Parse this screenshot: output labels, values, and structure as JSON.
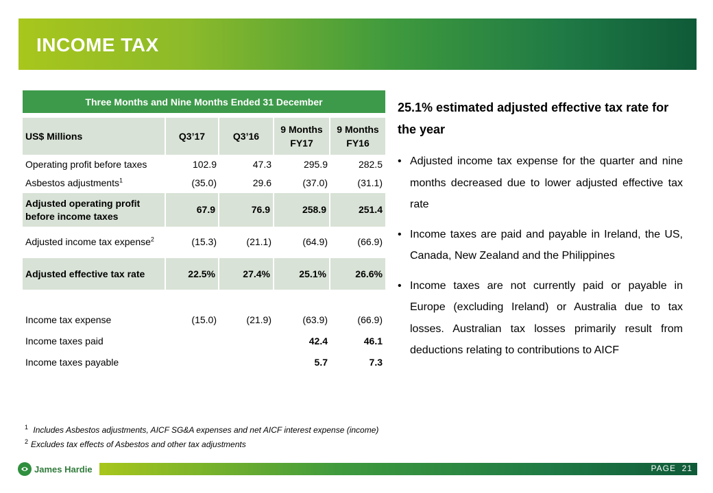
{
  "slide": {
    "title": "INCOME TAX",
    "page_label": "PAGE",
    "page_number": "21"
  },
  "table": {
    "caption": "Three Months and Nine Months Ended 31 December",
    "headers": {
      "label": "US$ Millions",
      "q317": "Q3’17",
      "q316": "Q3’16",
      "fy17_line1": "9 Months",
      "fy17_line2": "FY17",
      "fy16_line1": "9 Months",
      "fy16_line2": "FY16"
    },
    "rows": [
      {
        "label": "Operating profit before taxes",
        "q317": "102.9",
        "q316": "47.3",
        "fy17": "295.9",
        "fy16": "282.5"
      },
      {
        "label": "Asbestos adjustments",
        "sup": "1",
        "q317": "(35.0)",
        "q316": "29.6",
        "fy17": "(37.0)",
        "fy16": "(31.1)"
      },
      {
        "label_line1": "Adjusted operating profit",
        "label_line2": "before income taxes",
        "q317": "67.9",
        "q316": "76.9",
        "fy17": "258.9",
        "fy16": "251.4"
      },
      {
        "label": "Adjusted income tax expense",
        "sup": "2",
        "q317": "(15.3)",
        "q316": "(21.1)",
        "fy17": "(64.9)",
        "fy16": "(66.9)"
      },
      {
        "label": "Adjusted effective tax rate",
        "q317": "22.5%",
        "q316": "27.4%",
        "fy17": "25.1%",
        "fy16": "26.6%"
      },
      {
        "label": "Income tax expense",
        "q317": "(15.0)",
        "q316": "(21.9)",
        "fy17": "(63.9)",
        "fy16": "(66.9)"
      },
      {
        "label": "Income taxes paid",
        "q317": "",
        "q316": "",
        "fy17": "42.4",
        "fy16": "46.1"
      },
      {
        "label": "Income taxes payable",
        "q317": "",
        "q316": "",
        "fy17": "5.7",
        "fy16": "7.3"
      }
    ]
  },
  "commentary": {
    "headline": "25.1% estimated adjusted effective tax rate for the year",
    "bullets": [
      "Adjusted income tax expense for the quarter and nine months decreased due to lower adjusted effective tax rate",
      "Income taxes are paid and payable in Ireland, the US, Canada, New Zealand and the Philippines",
      "Income taxes are not currently paid or payable in Europe (excluding Ireland) or Australia due to tax losses. Australian tax losses primarily result from deductions relating to contributions to AICF"
    ]
  },
  "footnotes": [
    {
      "num": "1",
      "text": "Includes Asbestos adjustments, AICF SG&A expenses and net AICF interest expense (income)"
    },
    {
      "num": "2",
      "text": "Excludes tax effects of Asbestos and other tax adjustments"
    }
  ],
  "logo": {
    "name": "James Hardie"
  },
  "colors": {
    "brand_green": "#3d9a4a",
    "shade": "#d8e2d6"
  }
}
